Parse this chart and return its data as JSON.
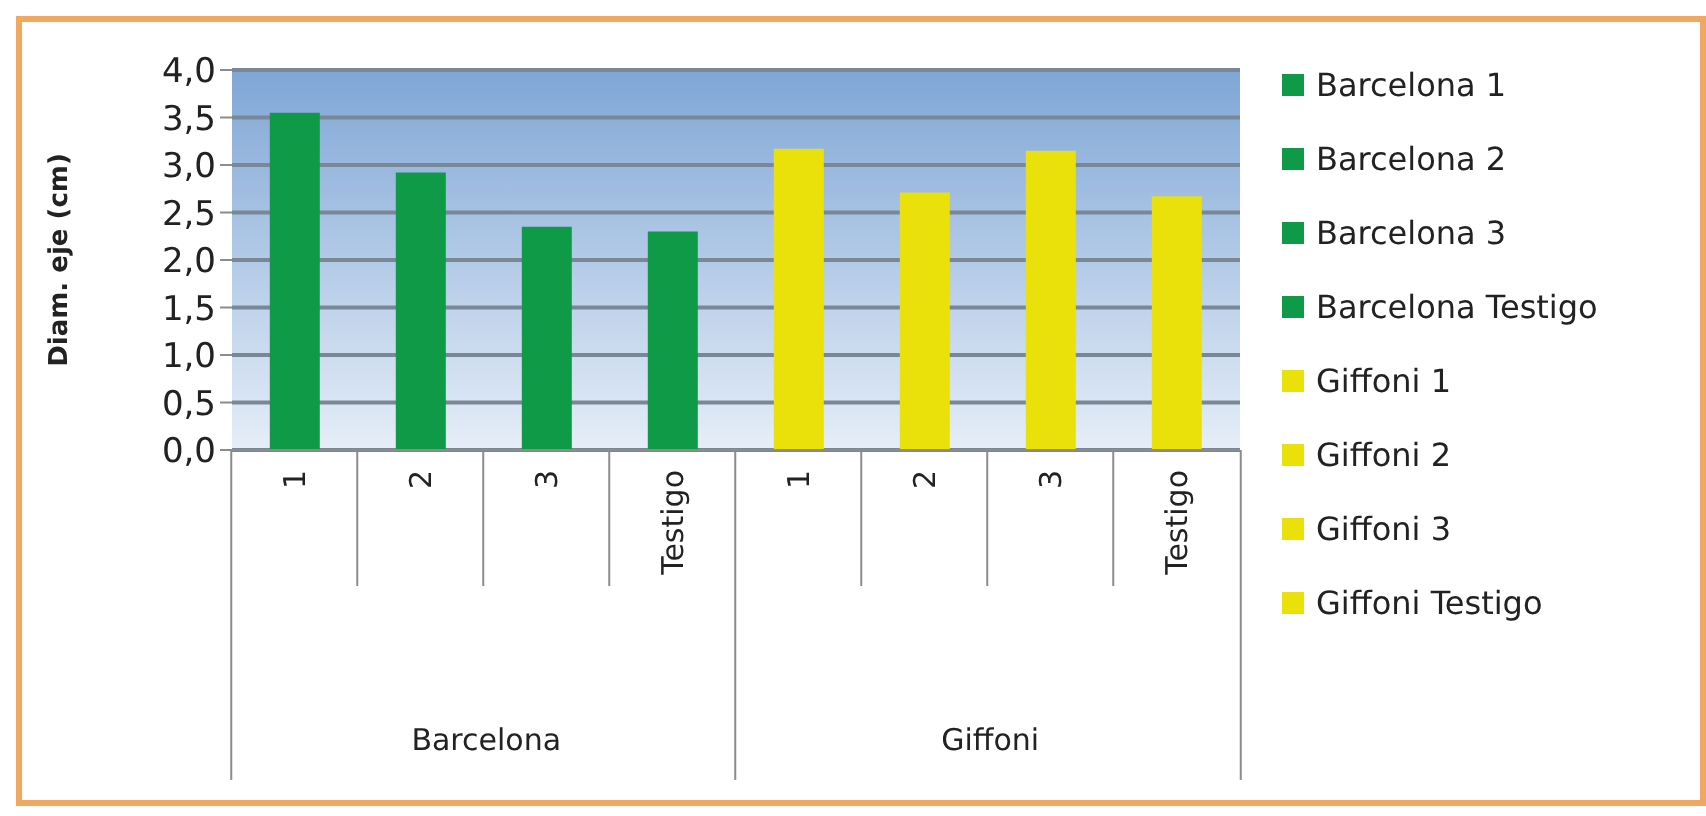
{
  "chart_data": {
    "type": "bar",
    "ylabel": "Diam. eje (cm)",
    "categories": [
      "1",
      "2",
      "3",
      "Testigo",
      "1",
      "2",
      "3",
      "Testigo"
    ],
    "annotations": [
      "Barcelona",
      "Giffoni"
    ],
    "stacked": true,
    "series": [
      {
        "name": "Barcelona 1",
        "color": "#0f9a48",
        "values": [
          3.55,
          null,
          null,
          null,
          null,
          null,
          null,
          null
        ]
      },
      {
        "name": "Barcelona 2",
        "color": "#0f9a48",
        "values": [
          null,
          2.92,
          null,
          null,
          null,
          null,
          null,
          null
        ]
      },
      {
        "name": "Barcelona 3",
        "color": "#0f9a48",
        "values": [
          null,
          null,
          2.35,
          null,
          null,
          null,
          null,
          null
        ]
      },
      {
        "name": "Barcelona Testigo",
        "color": "#0f9a48",
        "values": [
          null,
          null,
          null,
          2.3,
          null,
          null,
          null,
          null
        ]
      },
      {
        "name": "Giffoni 1",
        "color": "#ebe10a",
        "values": [
          null,
          null,
          null,
          null,
          3.17,
          null,
          null,
          null
        ]
      },
      {
        "name": "Giffoni 2",
        "color": "#ebe10a",
        "values": [
          null,
          null,
          null,
          null,
          null,
          2.71,
          null,
          null
        ]
      },
      {
        "name": "Giffoni 3",
        "color": "#ebe10a",
        "values": [
          null,
          null,
          null,
          null,
          null,
          null,
          3.15,
          null
        ]
      },
      {
        "name": "Giffoni Testigo",
        "color": "#ebe10a",
        "values": [
          null,
          null,
          null,
          null,
          null,
          null,
          null,
          2.67
        ]
      }
    ],
    "ylim": [
      0,
      4
    ],
    "yticks": [
      {
        "value": 0,
        "label": "0,0"
      },
      {
        "value": 0.5,
        "label": "0,5"
      },
      {
        "value": 1,
        "label": "1,0"
      },
      {
        "value": 1.5,
        "label": "1,5"
      },
      {
        "value": 2,
        "label": "2,0"
      },
      {
        "value": 2.5,
        "label": "2,5"
      },
      {
        "value": 3,
        "label": "3,0"
      },
      {
        "value": 3.5,
        "label": "3,5"
      },
      {
        "value": 4,
        "label": "4,0"
      }
    ],
    "grid": "y",
    "legend": "right"
  }
}
